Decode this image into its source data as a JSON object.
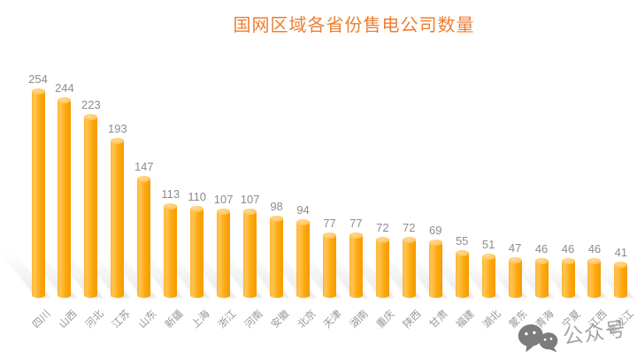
{
  "title": {
    "text": "国网区域各省份售电公司数量",
    "color": "#ED7D31"
  },
  "chart_data": {
    "type": "bar",
    "title": "国网区域各省份售电公司数量",
    "categories": [
      "四川",
      "山西",
      "河北",
      "江苏",
      "山东",
      "新疆",
      "上海",
      "浙江",
      "河南",
      "安徽",
      "北京",
      "天津",
      "湖南",
      "重庆",
      "陕西",
      "甘肃",
      "福建",
      "湖北",
      "蒙东",
      "青海",
      "宁夏",
      "江西",
      "黑龙江"
    ],
    "values": [
      254,
      244,
      223,
      193,
      147,
      113,
      110,
      107,
      107,
      98,
      94,
      77,
      77,
      72,
      72,
      69,
      55,
      51,
      47,
      46,
      46,
      46,
      41
    ],
    "xlabel": "",
    "ylabel": "",
    "ylim": [
      0,
      270
    ],
    "grid": false,
    "legend_position": "none",
    "value_labels_shown": true,
    "bar_style": "3d-cylinder",
    "bar_color": "#FFA41B",
    "bar_top_color": "#FFC966",
    "value_label_color": "#8C8C8C",
    "axis_label_color": "#979797",
    "axis_label_rotation_deg": -45
  },
  "watermark": {
    "icon": "wechat-icon",
    "text": "公众号",
    "color": "#9B9B9B"
  }
}
